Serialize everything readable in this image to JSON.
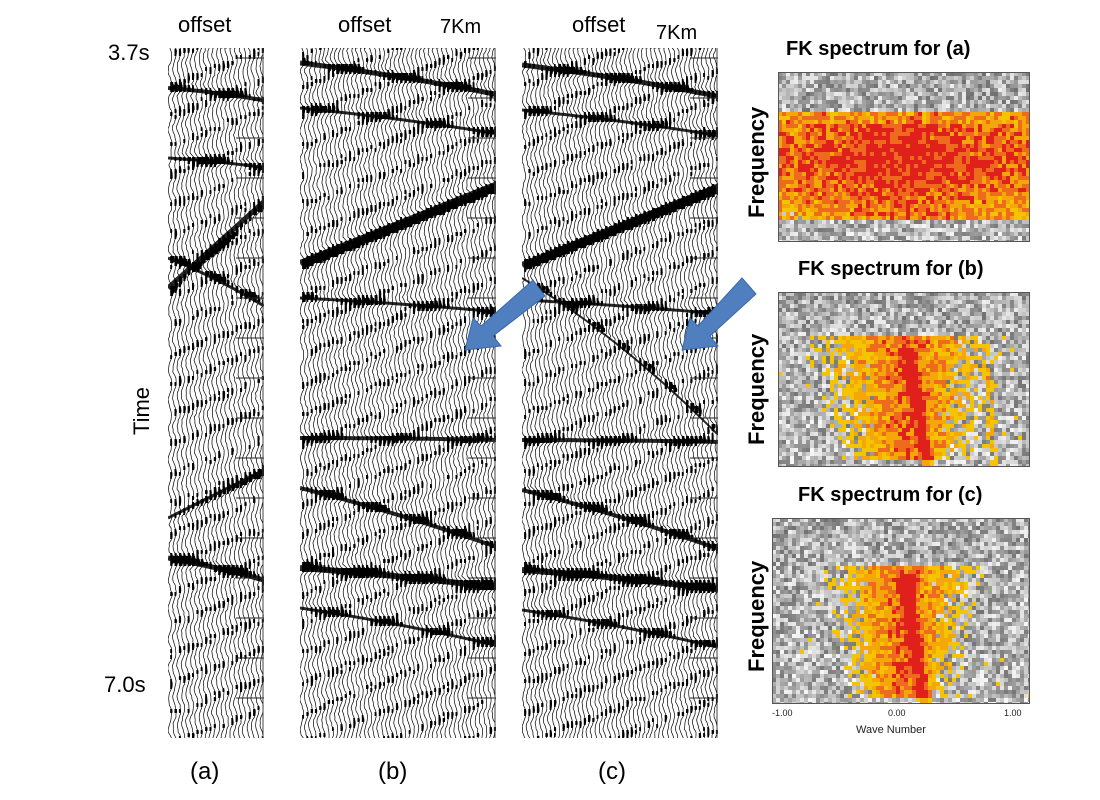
{
  "panels": {
    "a": {
      "offset_label": "offset",
      "caption": "(a)"
    },
    "b": {
      "offset_label": "offset",
      "distance_label": "7Km",
      "caption": "(b)"
    },
    "c": {
      "offset_label": "offset",
      "distance_label": "7Km",
      "caption": "(c)"
    }
  },
  "time_axis": {
    "label": "Time",
    "start": "3.7s",
    "end": "7.0s"
  },
  "fk": [
    {
      "title": "FK spectrum for  (a)",
      "ylabel": "Frequency"
    },
    {
      "title": "FK spectrum for  (b)",
      "ylabel": "Frequency"
    },
    {
      "title": "FK spectrum for  (c)",
      "ylabel": "Frequency"
    }
  ],
  "fk_axis": {
    "xlabel": "Wave Number",
    "ticks": [
      "-1.00",
      "0.00",
      "1.00"
    ]
  },
  "colors": {
    "arrow": "#4f7fbf",
    "wiggle": "#000000",
    "spectrum_hot": "#e0201a",
    "spectrum_warm": "#f5c400"
  }
}
